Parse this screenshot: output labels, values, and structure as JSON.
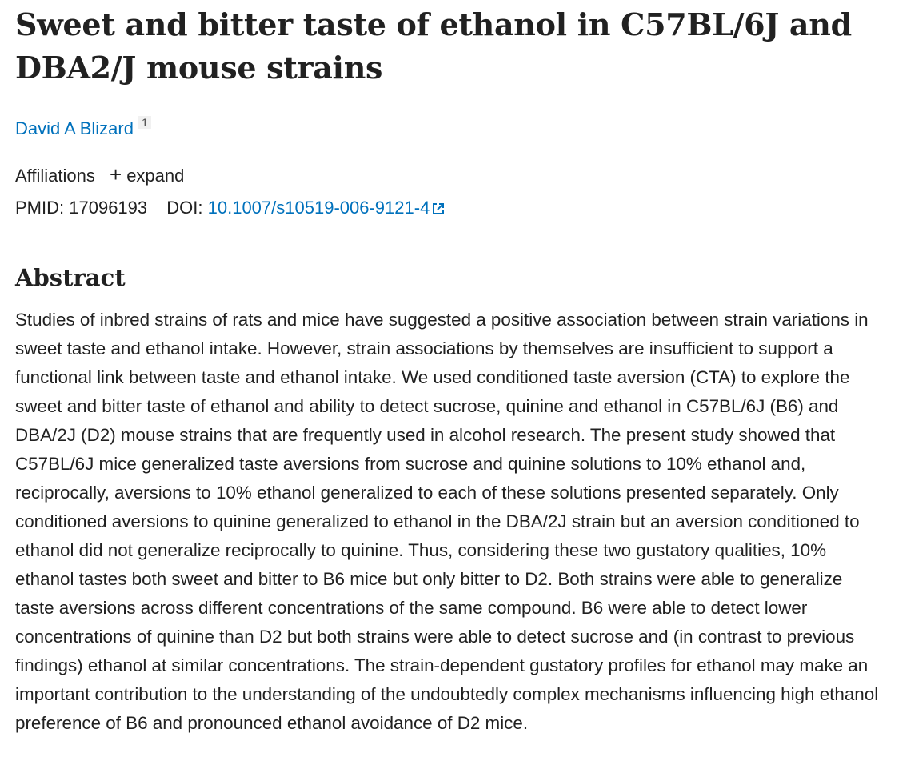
{
  "header": {
    "title": "Sweet and bitter taste of ethanol in C57BL/6J and DBA2/J mouse strains",
    "authors": [
      {
        "name": "David A Blizard",
        "affiliation_ref": "1"
      }
    ],
    "affiliations_label": "Affiliations",
    "expand": "expand",
    "pmid_label": "PMID:",
    "pmid": "17096193",
    "doi_label": "DOI:",
    "doi": "10.1007/s10519-006-9121-4"
  },
  "abstract": {
    "heading": "Abstract",
    "text": "Studies of inbred strains of rats and mice have suggested a positive association between strain variations in sweet taste and ethanol intake. However, strain associations by themselves are insufficient to support a functional link between taste and ethanol intake. We used conditioned taste aversion (CTA) to explore the sweet and bitter taste of ethanol and ability to detect sucrose, quinine and ethanol in C57BL/6J (B6) and DBA/2J (D2) mouse strains that are frequently used in alcohol research. The present study showed that C57BL/6J mice generalized taste aversions from sucrose and quinine solutions to 10% ethanol and, reciprocally, aversions to 10% ethanol generalized to each of these solutions presented separately. Only conditioned aversions to quinine generalized to ethanol in the DBA/2J strain but an aversion conditioned to ethanol did not generalize reciprocally to quinine. Thus, considering these two gustatory qualities, 10% ethanol tastes both sweet and bitter to B6 mice but only bitter to D2. Both strains were able to generalize taste aversions across different concentrations of the same compound. B6 were able to detect lower concentrations of quinine than D2 but both strains were able to detect sucrose and (in contrast to previous findings) ethanol at similar concentrations. The strain-dependent gustatory profiles for ethanol may make an important contribution to the understanding of the undoubtedly complex mechanisms influencing high ethanol preference of B6 and pronounced ethanol avoidance of D2 mice."
  }
}
